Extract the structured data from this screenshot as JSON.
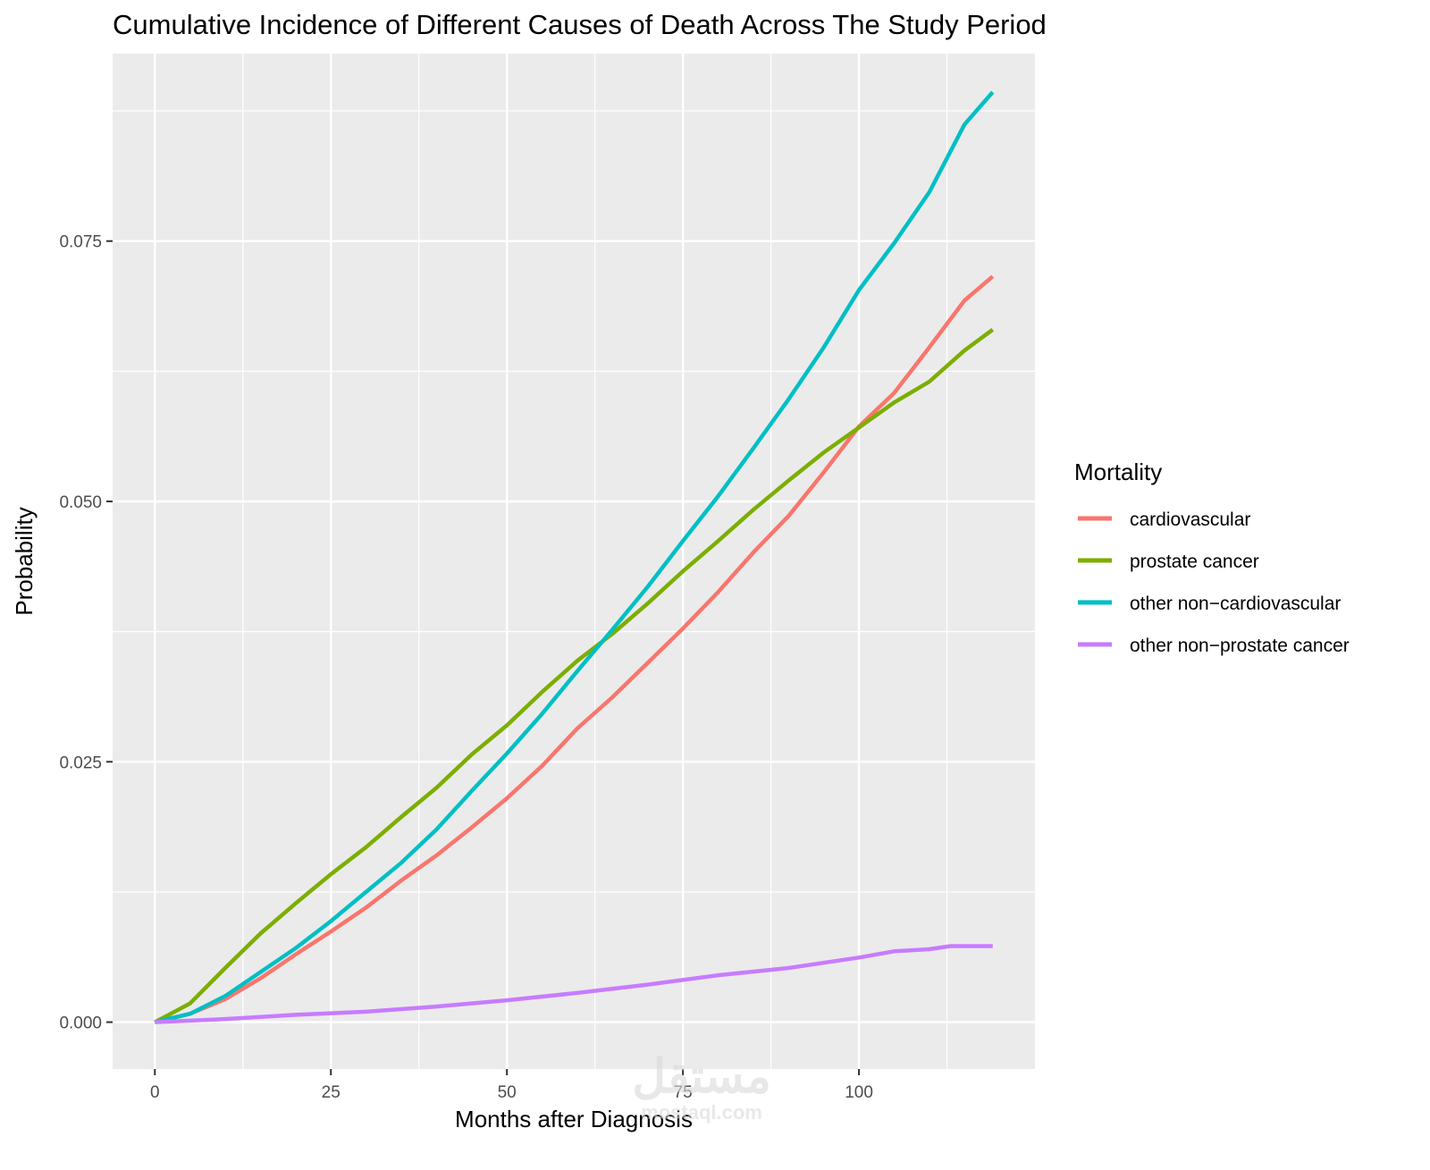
{
  "chart_data": {
    "type": "line",
    "title": "Cumulative Incidence of Different Causes of Death Across The Study Period",
    "xlabel": "Months after Diagnosis",
    "ylabel": "Probability",
    "xlim": [
      -6,
      125
    ],
    "ylim": [
      -0.0045,
      0.093
    ],
    "x_ticks": [
      0,
      25,
      50,
      75,
      100
    ],
    "x_tick_labels": [
      "0",
      "25",
      "50",
      "75",
      "100"
    ],
    "y_ticks": [
      0.0,
      0.025,
      0.05,
      0.075
    ],
    "y_tick_labels": [
      "0.000",
      "0.025",
      "0.050",
      "0.075"
    ],
    "grid": true,
    "legend": {
      "title": "Mortality",
      "position": "right"
    },
    "series": [
      {
        "name": "cardiovascular",
        "color": "#F8766D",
        "points": [
          [
            0,
            0
          ],
          [
            5,
            0.0008
          ],
          [
            10,
            0.0022
          ],
          [
            15,
            0.0042
          ],
          [
            20,
            0.0065
          ],
          [
            25,
            0.0087
          ],
          [
            30,
            0.011
          ],
          [
            35,
            0.0136
          ],
          [
            40,
            0.016
          ],
          [
            45,
            0.0187
          ],
          [
            50,
            0.0215
          ],
          [
            55,
            0.0246
          ],
          [
            60,
            0.0282
          ],
          [
            65,
            0.0312
          ],
          [
            70,
            0.0345
          ],
          [
            75,
            0.0378
          ],
          [
            80,
            0.0413
          ],
          [
            85,
            0.0451
          ],
          [
            90,
            0.0486
          ],
          [
            95,
            0.0528
          ],
          [
            100,
            0.0572
          ],
          [
            105,
            0.0604
          ],
          [
            110,
            0.0648
          ],
          [
            115,
            0.0693
          ],
          [
            119,
            0.0716
          ]
        ]
      },
      {
        "name": "prostate cancer",
        "color": "#7CAE00",
        "points": [
          [
            0,
            0
          ],
          [
            5,
            0.0018
          ],
          [
            10,
            0.0052
          ],
          [
            15,
            0.0085
          ],
          [
            20,
            0.0114
          ],
          [
            25,
            0.0142
          ],
          [
            30,
            0.0168
          ],
          [
            35,
            0.0197
          ],
          [
            40,
            0.0225
          ],
          [
            45,
            0.0257
          ],
          [
            50,
            0.0285
          ],
          [
            55,
            0.0317
          ],
          [
            60,
            0.0347
          ],
          [
            65,
            0.0373
          ],
          [
            70,
            0.0402
          ],
          [
            75,
            0.0433
          ],
          [
            80,
            0.0462
          ],
          [
            85,
            0.0492
          ],
          [
            90,
            0.052
          ],
          [
            95,
            0.0547
          ],
          [
            100,
            0.0571
          ],
          [
            105,
            0.0595
          ],
          [
            110,
            0.0615
          ],
          [
            115,
            0.0645
          ],
          [
            119,
            0.0665
          ]
        ]
      },
      {
        "name": "other non−cardiovascular",
        "color": "#00BFC4",
        "points": [
          [
            0,
            0
          ],
          [
            5,
            0.0008
          ],
          [
            10,
            0.0025
          ],
          [
            15,
            0.0048
          ],
          [
            20,
            0.0071
          ],
          [
            25,
            0.0097
          ],
          [
            30,
            0.0125
          ],
          [
            35,
            0.0153
          ],
          [
            40,
            0.0185
          ],
          [
            45,
            0.0222
          ],
          [
            50,
            0.0258
          ],
          [
            55,
            0.0296
          ],
          [
            60,
            0.0337
          ],
          [
            65,
            0.0377
          ],
          [
            70,
            0.0418
          ],
          [
            75,
            0.0462
          ],
          [
            80,
            0.0505
          ],
          [
            85,
            0.0551
          ],
          [
            90,
            0.0598
          ],
          [
            95,
            0.0648
          ],
          [
            100,
            0.0703
          ],
          [
            105,
            0.0748
          ],
          [
            110,
            0.0797
          ],
          [
            115,
            0.0862
          ],
          [
            119,
            0.0893
          ]
        ]
      },
      {
        "name": "other non−prostate cancer",
        "color": "#C77CFF",
        "points": [
          [
            0,
            0
          ],
          [
            10,
            0.0003
          ],
          [
            20,
            0.0007
          ],
          [
            30,
            0.001
          ],
          [
            40,
            0.0015
          ],
          [
            50,
            0.0021
          ],
          [
            60,
            0.0028
          ],
          [
            70,
            0.0036
          ],
          [
            80,
            0.0045
          ],
          [
            90,
            0.0052
          ],
          [
            100,
            0.0062
          ],
          [
            105,
            0.0068
          ],
          [
            110,
            0.007
          ],
          [
            113,
            0.0073
          ],
          [
            119,
            0.0073
          ]
        ]
      }
    ]
  }
}
